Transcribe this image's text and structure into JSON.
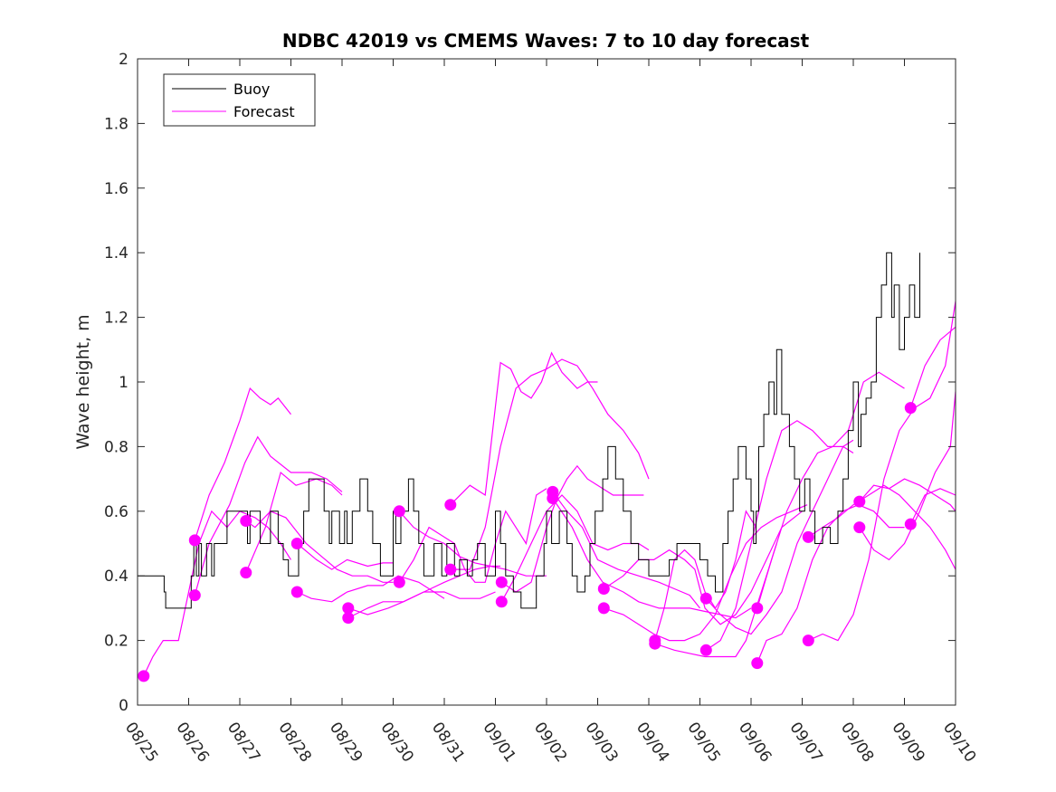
{
  "chart_data": {
    "type": "line",
    "title": "NDBC 42019 vs CMEMS Waves: 7 to 10 day forecast",
    "ylabel": "Wave height, m",
    "xlabel": "",
    "xlim": [
      0,
      16
    ],
    "ylim": [
      0,
      2
    ],
    "grid": false,
    "legend_position": "top-left",
    "x_tick_labels": [
      "08/25",
      "08/26",
      "08/27",
      "08/28",
      "08/29",
      "08/30",
      "08/31",
      "09/01",
      "09/02",
      "09/03",
      "09/04",
      "09/05",
      "09/06",
      "09/07",
      "09/08",
      "09/09",
      "09/10"
    ],
    "y_ticks": [
      0,
      0.2,
      0.4,
      0.6,
      0.8,
      1,
      1.2,
      1.4,
      1.6,
      1.8,
      2
    ],
    "y_tick_labels": [
      "0",
      "0.2",
      "0.4",
      "0.6",
      "0.8",
      "1",
      "1.2",
      "1.4",
      "1.6",
      "1.8",
      "2"
    ],
    "legend": [
      {
        "name": "Buoy",
        "color": "#000000"
      },
      {
        "name": "Forecast",
        "color": "#ff00ff"
      }
    ],
    "colors": {
      "buoy": "#000000",
      "forecast": "#ff00ff"
    },
    "buoy": {
      "name": "Buoy",
      "x": [
        0,
        0.5,
        0.52,
        0.55,
        0.9,
        0.92,
        1.0,
        1.05,
        1.1,
        1.15,
        1.2,
        1.25,
        1.35,
        1.45,
        1.5,
        1.6,
        1.75,
        2.1,
        2.15,
        2.2,
        2.35,
        2.4,
        2.5,
        2.6,
        2.75,
        2.85,
        2.95,
        3.05,
        3.15,
        3.25,
        3.35,
        3.5,
        3.65,
        3.75,
        3.8,
        3.95,
        4.05,
        4.1,
        4.2,
        4.35,
        4.5,
        4.6,
        4.75,
        5.0,
        5.05,
        5.15,
        5.3,
        5.4,
        5.5,
        5.6,
        5.8,
        5.95,
        6.05,
        6.2,
        6.3,
        6.45,
        6.55,
        6.65,
        6.8,
        7.0,
        7.1,
        7.2,
        7.35,
        7.5,
        7.65,
        7.8,
        7.95,
        8.0,
        8.1,
        8.25,
        8.4,
        8.5,
        8.6,
        8.75,
        8.85,
        8.95,
        9.1,
        9.2,
        9.35,
        9.5,
        9.65,
        9.8,
        10.0,
        10.2,
        10.4,
        10.55,
        10.7,
        10.9,
        11.0,
        11.15,
        11.3,
        11.45,
        11.55,
        11.65,
        11.75,
        11.9,
        12.0,
        12.05,
        12.1,
        12.15,
        12.25,
        12.35,
        12.45,
        12.5,
        12.6,
        12.75,
        12.85,
        12.95,
        13.05,
        13.15,
        13.25,
        13.4,
        13.55,
        13.7,
        13.8,
        13.9,
        14.0,
        14.1,
        14.15,
        14.25,
        14.35,
        14.45,
        14.55,
        14.65,
        14.75,
        14.8,
        14.9,
        15.0,
        15.1,
        15.2,
        15.3
      ],
      "y": [
        0.4,
        0.4,
        0.35,
        0.3,
        0.3,
        0.3,
        0.3,
        0.4,
        0.5,
        0.4,
        0.5,
        0.4,
        0.5,
        0.4,
        0.5,
        0.5,
        0.6,
        0.6,
        0.5,
        0.6,
        0.6,
        0.5,
        0.5,
        0.6,
        0.5,
        0.45,
        0.4,
        0.4,
        0.5,
        0.6,
        0.7,
        0.7,
        0.6,
        0.5,
        0.6,
        0.5,
        0.6,
        0.5,
        0.6,
        0.7,
        0.6,
        0.5,
        0.4,
        0.6,
        0.5,
        0.6,
        0.7,
        0.6,
        0.5,
        0.4,
        0.5,
        0.4,
        0.5,
        0.4,
        0.45,
        0.4,
        0.45,
        0.5,
        0.4,
        0.6,
        0.5,
        0.4,
        0.35,
        0.3,
        0.3,
        0.4,
        0.5,
        0.6,
        0.5,
        0.6,
        0.5,
        0.4,
        0.35,
        0.4,
        0.5,
        0.6,
        0.7,
        0.8,
        0.7,
        0.6,
        0.5,
        0.45,
        0.4,
        0.4,
        0.45,
        0.5,
        0.5,
        0.5,
        0.45,
        0.4,
        0.35,
        0.5,
        0.6,
        0.7,
        0.8,
        0.7,
        0.6,
        0.5,
        0.6,
        0.8,
        0.9,
        1.0,
        0.9,
        1.1,
        0.9,
        0.8,
        0.7,
        0.6,
        0.7,
        0.6,
        0.5,
        0.55,
        0.5,
        0.6,
        0.7,
        0.85,
        1.0,
        0.8,
        0.9,
        0.95,
        1.0,
        1.2,
        1.3,
        1.4,
        1.2,
        1.3,
        1.1,
        1.2,
        1.3,
        1.2,
        1.4
      ]
    },
    "forecast_series": [
      {
        "name": "Forecast",
        "x": [
          0.12,
          0.3,
          0.5,
          0.8,
          1.0,
          1.2,
          1.45,
          1.75,
          2.0,
          2.3,
          2.55,
          2.8,
          3.0
        ],
        "y": [
          0.09,
          0.15,
          0.2,
          0.2,
          0.35,
          0.5,
          0.6,
          0.55,
          0.6,
          0.58,
          0.55,
          0.5,
          0.45
        ]
      },
      {
        "name": "Forecast",
        "x": [
          1.12,
          1.4,
          1.7,
          2.0,
          2.2,
          2.4,
          2.6,
          2.75,
          2.9,
          3.0
        ],
        "y": [
          0.51,
          0.65,
          0.75,
          0.88,
          0.98,
          0.95,
          0.93,
          0.95,
          0.92,
          0.9
        ]
      },
      {
        "name": "Forecast",
        "x": [
          1.12,
          1.4,
          1.8,
          2.1,
          2.35,
          2.6,
          3.0,
          3.4,
          3.7,
          4.0
        ],
        "y": [
          0.34,
          0.5,
          0.62,
          0.75,
          0.83,
          0.77,
          0.72,
          0.72,
          0.7,
          0.66
        ]
      },
      {
        "name": "Forecast",
        "x": [
          2.12,
          2.3,
          2.6,
          2.9,
          3.3,
          3.6,
          3.9,
          4.2,
          4.5,
          4.8,
          5.0
        ],
        "y": [
          0.57,
          0.55,
          0.6,
          0.58,
          0.5,
          0.46,
          0.42,
          0.4,
          0.4,
          0.38,
          0.38
        ]
      },
      {
        "name": "Forecast",
        "x": [
          2.12,
          2.5,
          2.8,
          3.1,
          3.5,
          3.8,
          4.0
        ],
        "y": [
          0.41,
          0.55,
          0.72,
          0.68,
          0.7,
          0.68,
          0.65
        ]
      },
      {
        "name": "Forecast",
        "x": [
          3.12,
          3.5,
          3.8,
          4.1,
          4.5,
          4.8,
          5.0
        ],
        "y": [
          0.5,
          0.45,
          0.42,
          0.45,
          0.43,
          0.44,
          0.44
        ]
      },
      {
        "name": "Forecast",
        "x": [
          3.12,
          3.4,
          3.8,
          4.1,
          4.5,
          4.8,
          5.1,
          5.5,
          5.8,
          6.0
        ],
        "y": [
          0.35,
          0.33,
          0.32,
          0.35,
          0.37,
          0.37,
          0.4,
          0.38,
          0.35,
          0.33
        ]
      },
      {
        "name": "Forecast",
        "x": [
          4.12,
          4.5,
          4.9,
          5.2,
          5.6,
          6.0,
          6.3,
          6.7,
          7.0
        ],
        "y": [
          0.3,
          0.28,
          0.3,
          0.32,
          0.35,
          0.35,
          0.33,
          0.33,
          0.35
        ]
      },
      {
        "name": "Forecast",
        "x": [
          4.12,
          4.5,
          4.8,
          5.2,
          5.6,
          6.0,
          6.3,
          6.6,
          6.9,
          7.1
        ],
        "y": [
          0.27,
          0.3,
          0.32,
          0.32,
          0.35,
          0.38,
          0.4,
          0.42,
          0.43,
          0.43
        ]
      },
      {
        "name": "Forecast",
        "x": [
          5.12,
          5.4,
          5.7,
          6.0,
          6.3,
          6.6,
          6.9,
          7.2,
          7.6,
          8.0
        ],
        "y": [
          0.6,
          0.55,
          0.52,
          0.5,
          0.46,
          0.44,
          0.43,
          0.42,
          0.4,
          0.4
        ]
      },
      {
        "name": "Forecast",
        "x": [
          5.12,
          5.4,
          5.7,
          6.0,
          6.2,
          6.4,
          6.6,
          6.8,
          7.0,
          7.2,
          7.4,
          7.6,
          7.8,
          8.0
        ],
        "y": [
          0.38,
          0.45,
          0.55,
          0.52,
          0.5,
          0.42,
          0.38,
          0.38,
          0.5,
          0.6,
          0.55,
          0.5,
          0.65,
          0.67
        ]
      },
      {
        "name": "Forecast",
        "x": [
          6.12,
          6.5,
          6.8,
          7.1,
          7.3,
          7.5,
          7.7,
          7.9,
          8.1,
          8.3,
          8.6,
          8.8,
          9.0
        ],
        "y": [
          0.62,
          0.68,
          0.65,
          1.06,
          1.04,
          0.97,
          0.95,
          1.0,
          1.09,
          1.03,
          0.98,
          1.0,
          1.0
        ]
      },
      {
        "name": "Forecast",
        "x": [
          6.12,
          6.5,
          6.8,
          7.1,
          7.4,
          7.7,
          8.0,
          8.3,
          8.6,
          8.9,
          9.2,
          9.5,
          9.8,
          10.0
        ],
        "y": [
          0.42,
          0.42,
          0.55,
          0.8,
          0.98,
          1.02,
          1.04,
          1.07,
          1.05,
          0.98,
          0.9,
          0.85,
          0.78,
          0.7
        ]
      },
      {
        "name": "Forecast",
        "x": [
          7.12,
          7.4,
          7.7,
          8.0,
          8.2,
          8.4,
          8.6,
          8.8,
          9.0,
          9.3,
          9.6,
          9.9
        ],
        "y": [
          0.38,
          0.35,
          0.38,
          0.55,
          0.64,
          0.7,
          0.74,
          0.7,
          0.68,
          0.65,
          0.65,
          0.65
        ]
      },
      {
        "name": "Forecast",
        "x": [
          7.12,
          7.4,
          7.7,
          8.0,
          8.3,
          8.6,
          8.9,
          9.2,
          9.5,
          9.8,
          10.0
        ],
        "y": [
          0.32,
          0.4,
          0.5,
          0.6,
          0.65,
          0.6,
          0.5,
          0.48,
          0.5,
          0.5,
          0.48
        ]
      },
      {
        "name": "Forecast",
        "x": [
          8.12,
          8.4,
          8.7,
          9.0,
          9.4,
          9.8,
          10.2,
          10.5,
          10.8,
          11.0
        ],
        "y": [
          0.66,
          0.6,
          0.55,
          0.45,
          0.42,
          0.4,
          0.38,
          0.36,
          0.34,
          0.3
        ]
      },
      {
        "name": "Forecast",
        "x": [
          8.12,
          8.5,
          8.8,
          9.1,
          9.5,
          9.8,
          10.2,
          10.5,
          10.8,
          11.1,
          11.4,
          11.7,
          12.0
        ],
        "y": [
          0.64,
          0.55,
          0.45,
          0.38,
          0.35,
          0.32,
          0.3,
          0.3,
          0.3,
          0.29,
          0.28,
          0.27,
          0.3
        ]
      },
      {
        "name": "Forecast",
        "x": [
          9.12,
          9.5,
          9.8,
          10.1,
          10.4,
          10.7,
          10.9,
          11.1,
          11.4,
          11.7,
          12.0,
          12.3,
          12.6,
          13.0
        ],
        "y": [
          0.36,
          0.4,
          0.45,
          0.45,
          0.48,
          0.45,
          0.42,
          0.3,
          0.25,
          0.28,
          0.35,
          0.45,
          0.55,
          0.6
        ]
      },
      {
        "name": "Forecast",
        "x": [
          9.12,
          9.5,
          9.8,
          10.1,
          10.4,
          10.7,
          11.0,
          11.3,
          11.6,
          11.9,
          12.2,
          12.5,
          12.8,
          13.1
        ],
        "y": [
          0.3,
          0.28,
          0.25,
          0.22,
          0.2,
          0.2,
          0.22,
          0.28,
          0.4,
          0.5,
          0.55,
          0.58,
          0.6,
          0.62
        ]
      },
      {
        "name": "Forecast",
        "x": [
          10.12,
          10.3,
          10.5,
          10.7,
          10.9,
          11.1,
          11.3,
          11.5,
          11.7,
          11.9,
          12.1
        ],
        "y": [
          0.2,
          0.3,
          0.45,
          0.48,
          0.45,
          0.35,
          0.3,
          0.35,
          0.45,
          0.6,
          0.55
        ]
      },
      {
        "name": "Forecast",
        "x": [
          10.12,
          10.5,
          10.8,
          11.1,
          11.4,
          11.7,
          11.9,
          12.1,
          12.3,
          12.5
        ],
        "y": [
          0.19,
          0.17,
          0.16,
          0.15,
          0.15,
          0.15,
          0.2,
          0.3,
          0.4,
          0.5
        ]
      },
      {
        "name": "Forecast",
        "x": [
          11.12,
          11.4,
          11.7,
          12.0,
          12.3,
          12.6,
          12.9,
          13.2,
          13.5,
          13.8,
          14.0
        ],
        "y": [
          0.33,
          0.28,
          0.24,
          0.22,
          0.28,
          0.35,
          0.5,
          0.6,
          0.7,
          0.8,
          0.82
        ]
      },
      {
        "name": "Forecast",
        "x": [
          11.12,
          11.4,
          11.7,
          12.0,
          12.3,
          12.6,
          12.9,
          13.2,
          13.5,
          13.8,
          14.0
        ],
        "y": [
          0.17,
          0.2,
          0.3,
          0.5,
          0.7,
          0.85,
          0.88,
          0.85,
          0.8,
          0.8,
          0.78
        ]
      },
      {
        "name": "Forecast",
        "x": [
          12.12,
          12.4,
          12.7,
          13.0,
          13.3,
          13.6,
          13.9,
          14.2,
          14.5,
          14.8,
          15.0
        ],
        "y": [
          0.3,
          0.45,
          0.6,
          0.7,
          0.78,
          0.8,
          0.85,
          1.0,
          1.03,
          1.0,
          0.98
        ]
      },
      {
        "name": "Forecast",
        "x": [
          12.12,
          12.3,
          12.6,
          12.9,
          13.2,
          13.5,
          13.8,
          14.1,
          14.4,
          14.7,
          15.0
        ],
        "y": [
          0.13,
          0.2,
          0.22,
          0.3,
          0.45,
          0.55,
          0.6,
          0.62,
          0.6,
          0.55,
          0.55
        ]
      },
      {
        "name": "Forecast",
        "x": [
          13.12,
          13.4,
          13.7,
          14.0,
          14.3,
          14.6,
          14.9,
          15.2,
          15.5,
          15.8,
          16.0
        ],
        "y": [
          0.52,
          0.55,
          0.58,
          0.62,
          0.65,
          0.68,
          0.65,
          0.6,
          0.55,
          0.48,
          0.42
        ]
      },
      {
        "name": "Forecast",
        "x": [
          13.12,
          13.4,
          13.7,
          14.0,
          14.3,
          14.6,
          14.9,
          15.2,
          15.5,
          15.8,
          16.0
        ],
        "y": [
          0.2,
          0.22,
          0.2,
          0.28,
          0.45,
          0.7,
          0.85,
          0.92,
          0.95,
          1.05,
          1.25
        ]
      },
      {
        "name": "Forecast",
        "x": [
          14.12,
          14.4,
          14.7,
          15.0,
          15.3,
          15.6,
          15.9,
          16.0
        ],
        "y": [
          0.63,
          0.68,
          0.67,
          0.7,
          0.68,
          0.65,
          0.62,
          0.6
        ]
      },
      {
        "name": "Forecast",
        "x": [
          14.12,
          14.4,
          14.7,
          15.0,
          15.3,
          15.6,
          15.9,
          16.0
        ],
        "y": [
          0.55,
          0.48,
          0.45,
          0.5,
          0.6,
          0.72,
          0.8,
          0.97
        ]
      },
      {
        "name": "Forecast",
        "x": [
          15.12,
          15.4,
          15.7,
          16.0
        ],
        "y": [
          0.92,
          1.05,
          1.13,
          1.17
        ]
      },
      {
        "name": "Forecast",
        "x": [
          15.12,
          15.4,
          15.7,
          16.0
        ],
        "y": [
          0.56,
          0.65,
          0.67,
          0.65
        ]
      }
    ]
  }
}
